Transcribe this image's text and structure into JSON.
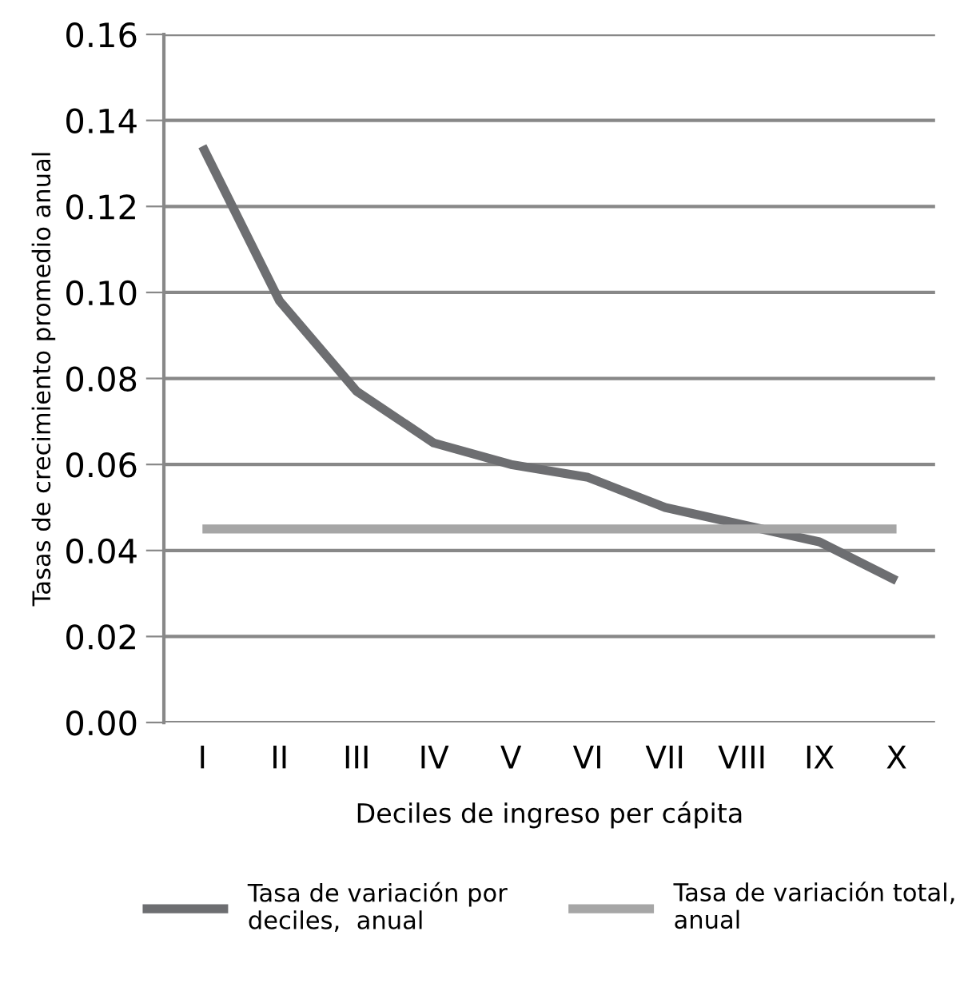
{
  "chart_data": {
    "type": "line",
    "xlabel": "Deciles de ingreso per cápita",
    "ylabel": "Tasas de crecimiento promedio anual",
    "categories": [
      "I",
      "II",
      "III",
      "IV",
      "V",
      "VI",
      "VII",
      "VIII",
      "IX",
      "X"
    ],
    "series": [
      {
        "name": "Tasa de variación por\ndeciles,  anual",
        "color": "#6d6e71",
        "values": [
          0.134,
          0.098,
          0.077,
          0.065,
          0.06,
          0.057,
          0.05,
          0.046,
          0.042,
          0.033
        ]
      },
      {
        "name": "Tasa de variación total,\nanual",
        "color": "#a6a6a6",
        "values": [
          0.045,
          0.045,
          0.045,
          0.045,
          0.045,
          0.045,
          0.045,
          0.045,
          0.045,
          0.045
        ]
      }
    ],
    "ylim": [
      0,
      0.16
    ],
    "yticks": [
      {
        "value": 0,
        "label": "0.00"
      },
      {
        "value": 0.02,
        "label": "0.02"
      },
      {
        "value": 0.04,
        "label": "0.04"
      },
      {
        "value": 0.06,
        "label": "0.06"
      },
      {
        "value": 0.08,
        "label": "0.08"
      },
      {
        "value": 0.1,
        "label": "0.10"
      },
      {
        "value": 0.12,
        "label": "0.12"
      },
      {
        "value": 0.14,
        "label": "0.14"
      },
      {
        "value": 0.16,
        "label": "0.16"
      }
    ],
    "grid": "y",
    "legend": "bottom",
    "marker": "none",
    "line_style": "solid"
  }
}
